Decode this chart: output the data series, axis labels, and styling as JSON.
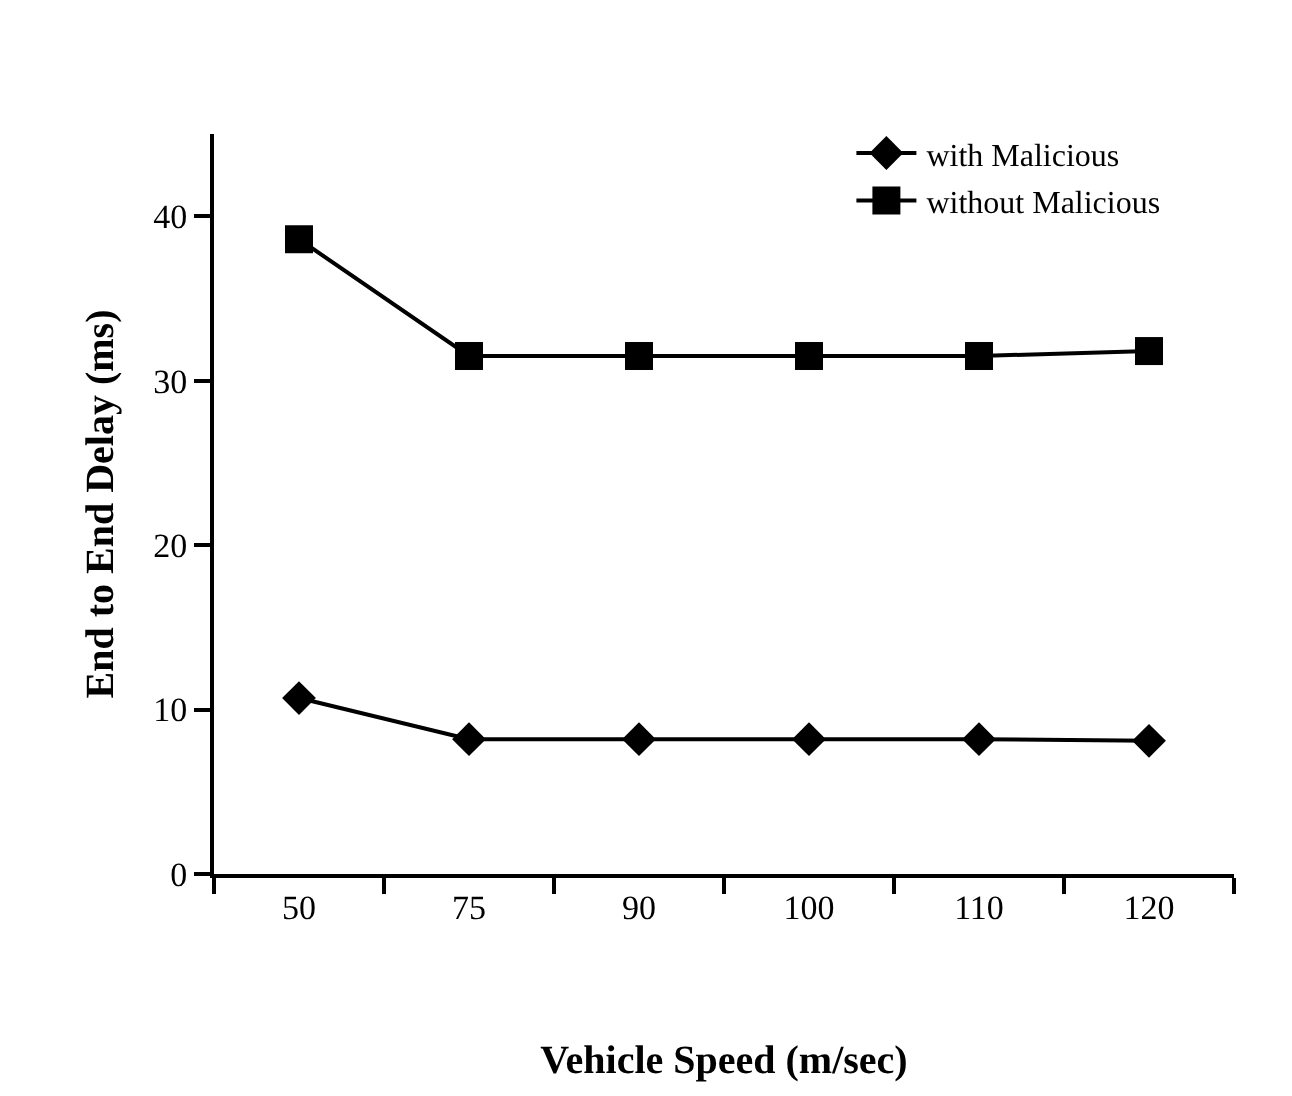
{
  "chart_data": {
    "type": "line",
    "xlabel": "Vehicle Speed (m/sec)",
    "ylabel": "End to End Delay (ms)",
    "categories": [
      "50",
      "75",
      "90",
      "100",
      "110",
      "120"
    ],
    "series": [
      {
        "name": "with Malicious",
        "color": "#000000",
        "marker": "diamond",
        "values": [
          10.7,
          8.2,
          8.2,
          8.2,
          8.2,
          8.1
        ]
      },
      {
        "name": "without Malicious",
        "color": "#000000",
        "marker": "square",
        "values": [
          38.6,
          31.5,
          31.5,
          31.5,
          31.5,
          31.8
        ]
      }
    ],
    "ylim": [
      0,
      45
    ],
    "yticks": [
      0,
      10,
      20,
      30,
      40
    ],
    "legend": "top right",
    "line_style": "solid"
  }
}
